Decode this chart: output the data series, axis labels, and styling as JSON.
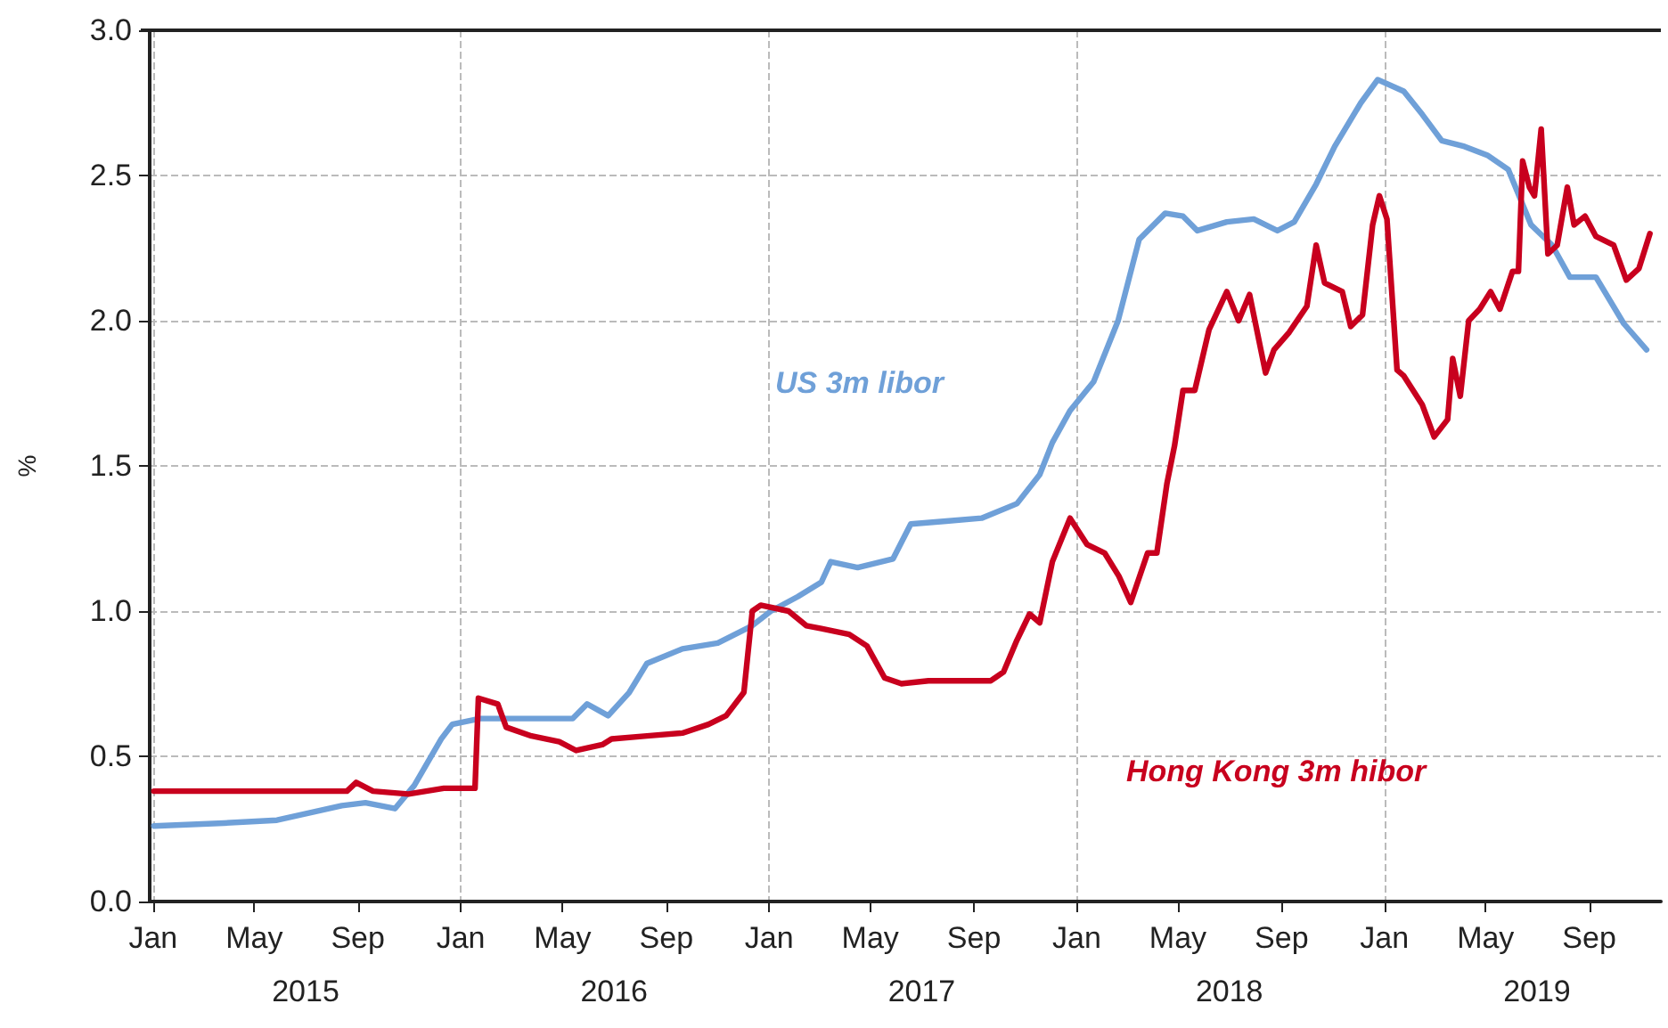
{
  "chart_data": {
    "type": "line",
    "ylabel": "%",
    "series": [
      {
        "color": "#6fa0d8",
        "x": [
          "2015-01-02",
          "2015-03-26",
          "2015-05-28",
          "2015-08-13",
          "2015-09-10",
          "2015-10-15",
          "2015-11-07",
          "2015-12-09",
          "2015-12-22",
          "2016-01-24",
          "2016-04-06",
          "2016-05-13",
          "2016-05-30",
          "2016-06-24",
          "2016-07-19",
          "2016-08-09",
          "2016-09-20",
          "2016-11-01",
          "2016-12-12",
          "2017-01-03",
          "2017-02-04",
          "2017-03-04",
          "2017-03-15",
          "2017-04-16",
          "2017-05-28",
          "2017-06-18",
          "2017-07-30",
          "2017-09-10",
          "2017-10-22",
          "2017-11-18",
          "2017-12-03",
          "2017-12-24",
          "2018-01-21",
          "2018-02-19",
          "2018-03-16",
          "2018-04-16",
          "2018-05-07",
          "2018-05-24",
          "2018-06-28",
          "2018-07-30",
          "2018-08-27",
          "2018-09-16",
          "2018-10-12",
          "2018-11-03",
          "2018-12-04",
          "2018-12-24",
          "2019-01-24",
          "2019-02-15",
          "2019-03-10",
          "2019-04-06",
          "2019-05-03",
          "2019-05-28",
          "2019-06-24",
          "2019-07-19",
          "2019-08-09",
          "2019-09-09",
          "2019-10-12",
          "2019-11-08"
        ],
        "values": [
          0.26,
          0.27,
          0.28,
          0.33,
          0.34,
          0.32,
          0.4,
          0.56,
          0.61,
          0.63,
          0.63,
          0.63,
          0.68,
          0.64,
          0.72,
          0.82,
          0.87,
          0.89,
          0.95,
          1.0,
          1.05,
          1.1,
          1.17,
          1.15,
          1.18,
          1.3,
          1.31,
          1.32,
          1.37,
          1.47,
          1.58,
          1.69,
          1.79,
          2.0,
          2.28,
          2.37,
          2.36,
          2.31,
          2.34,
          2.35,
          2.31,
          2.34,
          2.47,
          2.6,
          2.75,
          2.83,
          2.79,
          2.71,
          2.62,
          2.6,
          2.57,
          2.52,
          2.33,
          2.26,
          2.15,
          2.15,
          1.99,
          1.9
        ]
      },
      {
        "color": "#c8001e",
        "x": [
          "2015-01-02",
          "2015-05-28",
          "2015-08-19",
          "2015-08-30",
          "2015-09-19",
          "2015-10-31",
          "2015-12-12",
          "2016-01-18",
          "2016-01-22",
          "2016-02-14",
          "2016-02-24",
          "2016-03-25",
          "2016-04-27",
          "2016-05-17",
          "2016-06-17",
          "2016-06-28",
          "2016-08-09",
          "2016-09-20",
          "2016-10-21",
          "2016-11-11",
          "2016-12-02",
          "2016-12-12",
          "2016-12-22",
          "2017-01-24",
          "2017-02-14",
          "2017-03-04",
          "2017-04-06",
          "2017-04-27",
          "2017-05-18",
          "2017-06-07",
          "2017-07-09",
          "2017-08-10",
          "2017-09-21",
          "2017-10-06",
          "2017-10-22",
          "2017-11-06",
          "2017-11-18",
          "2017-12-03",
          "2017-12-24",
          "2018-01-13",
          "2018-02-03",
          "2018-02-20",
          "2018-03-06",
          "2018-03-26",
          "2018-04-06",
          "2018-04-18",
          "2018-04-27",
          "2018-05-07",
          "2018-05-21",
          "2018-06-07",
          "2018-06-28",
          "2018-07-12",
          "2018-07-25",
          "2018-08-13",
          "2018-08-23",
          "2018-09-10",
          "2018-10-01",
          "2018-10-12",
          "2018-10-22",
          "2018-11-12",
          "2018-11-22",
          "2018-12-06",
          "2018-12-18",
          "2018-12-26",
          "2019-01-04",
          "2019-01-16",
          "2019-01-24",
          "2019-02-15",
          "2019-03-01",
          "2019-03-17",
          "2019-03-23",
          "2019-04-01",
          "2019-04-11",
          "2019-04-24",
          "2019-05-07",
          "2019-05-18",
          "2019-06-02",
          "2019-06-09",
          "2019-06-14",
          "2019-06-22",
          "2019-06-28",
          "2019-07-06",
          "2019-07-14",
          "2019-07-25",
          "2019-08-06",
          "2019-08-14",
          "2019-08-27",
          "2019-09-09",
          "2019-09-30",
          "2019-10-15",
          "2019-10-30",
          "2019-11-12"
        ],
        "values": [
          0.38,
          0.38,
          0.38,
          0.41,
          0.38,
          0.37,
          0.39,
          0.39,
          0.7,
          0.68,
          0.6,
          0.57,
          0.55,
          0.52,
          0.54,
          0.56,
          0.57,
          0.58,
          0.61,
          0.64,
          0.72,
          1.0,
          1.02,
          1.0,
          0.95,
          0.94,
          0.92,
          0.88,
          0.77,
          0.75,
          0.76,
          0.76,
          0.76,
          0.79,
          0.9,
          0.99,
          0.96,
          1.17,
          1.32,
          1.23,
          1.2,
          1.12,
          1.03,
          1.2,
          1.2,
          1.44,
          1.57,
          1.76,
          1.76,
          1.97,
          2.1,
          2.0,
          2.09,
          1.82,
          1.9,
          1.96,
          2.05,
          2.26,
          2.13,
          2.1,
          1.98,
          2.02,
          2.33,
          2.43,
          2.35,
          1.83,
          1.81,
          1.71,
          1.6,
          1.66,
          1.87,
          1.74,
          2.0,
          2.04,
          2.1,
          2.04,
          2.17,
          2.17,
          2.55,
          2.46,
          2.43,
          2.66,
          2.23,
          2.26,
          2.46,
          2.33,
          2.36,
          2.29,
          2.26,
          2.14,
          2.18,
          2.3
        ]
      }
    ],
    "annotations": [
      "US 3m libor",
      "Hong Kong 3m hibor"
    ],
    "xlim": [
      "2014-12-28",
      "2019-11-25"
    ],
    "xticks": [
      {
        "value": "2015-01-01",
        "label": "Jan"
      },
      {
        "value": "2015-05-01",
        "label": "May"
      },
      {
        "value": "2015-09-01",
        "label": "Sep"
      },
      {
        "value": "2016-01-01",
        "label": "Jan"
      },
      {
        "value": "2016-05-01",
        "label": "May"
      },
      {
        "value": "2016-09-01",
        "label": "Sep"
      },
      {
        "value": "2017-01-01",
        "label": "Jan"
      },
      {
        "value": "2017-05-01",
        "label": "May"
      },
      {
        "value": "2017-09-01",
        "label": "Sep"
      },
      {
        "value": "2018-01-01",
        "label": "Jan"
      },
      {
        "value": "2018-05-01",
        "label": "May"
      },
      {
        "value": "2018-09-01",
        "label": "Sep"
      },
      {
        "value": "2019-01-01",
        "label": "Jan"
      },
      {
        "value": "2019-05-01",
        "label": "May"
      },
      {
        "value": "2019-09-01",
        "label": "Sep"
      }
    ],
    "x2lim": [
      "2014-12-28",
      "2019-11-25"
    ],
    "x2ticks": [
      {
        "value": "2015-07-01",
        "label": "2015"
      },
      {
        "value": "2016-07-01",
        "label": "2016"
      },
      {
        "value": "2017-07-01",
        "label": "2017"
      },
      {
        "value": "2018-07-01",
        "label": "2018"
      },
      {
        "value": "2019-07-01",
        "label": "2019"
      }
    ],
    "ylim": [
      0,
      3
    ],
    "yticks": [
      {
        "value": 0,
        "label": "0.0"
      },
      0.5,
      {
        "value": 1,
        "label": "1.0"
      },
      1.5,
      {
        "value": 2,
        "label": "2.0"
      },
      2.5,
      {
        "value": 3,
        "label": "3.0"
      }
    ],
    "grid": true,
    "marker": "none",
    "line_style": "solid"
  }
}
